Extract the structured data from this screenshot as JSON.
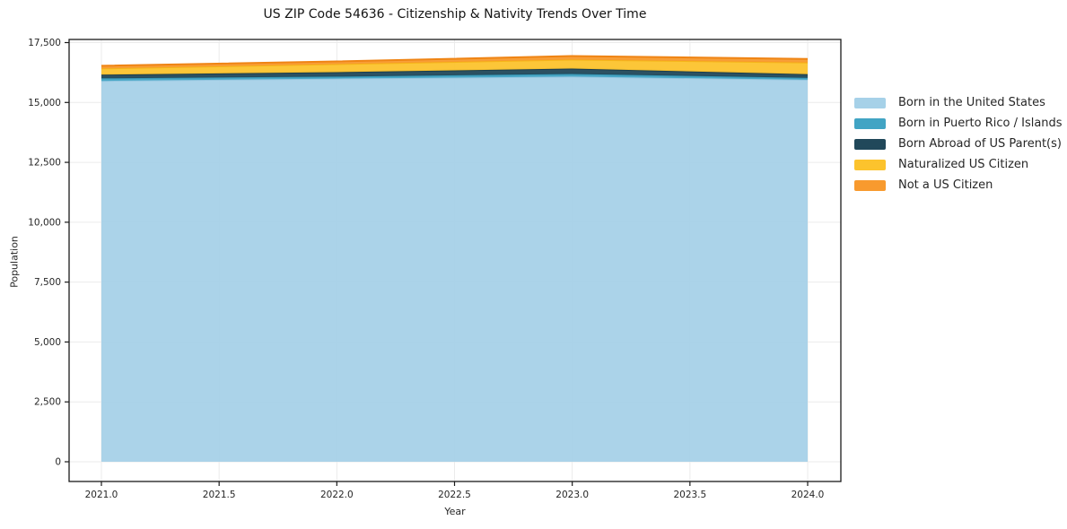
{
  "title": "US ZIP Code 54636 - Citizenship & Nativity Trends Over Time",
  "chart_data": {
    "type": "area",
    "stacked": true,
    "title": "US ZIP Code 54636 - Citizenship & Nativity Trends Over Time",
    "xlabel": "Year",
    "ylabel": "Population",
    "x": [
      2021,
      2022,
      2023,
      2024
    ],
    "series": [
      {
        "name": "Born in the United States",
        "color": "#a6d1e8",
        "edge": "#94c6e0",
        "values": [
          15900,
          16000,
          16080,
          15950
        ]
      },
      {
        "name": "Born in Puerto Rico / Islands",
        "color": "#41a4c4",
        "edge": "#3795b4",
        "values": [
          110,
          80,
          110,
          80
        ]
      },
      {
        "name": "Born Abroad of US Parent(s)",
        "color": "#21485a",
        "edge": "#1a3d4e",
        "values": [
          150,
          185,
          225,
          150
        ]
      },
      {
        "name": "Naturalized US Citizen",
        "color": "#fcc32d",
        "edge": "#f5b519",
        "values": [
          260,
          335,
          375,
          490
        ]
      },
      {
        "name": "Not a US Citizen",
        "color": "#f89a2e",
        "edge": "#ef8414",
        "values": [
          110,
          115,
          150,
          150
        ]
      }
    ],
    "totals": [
      16530,
      16715,
      16940,
      16820
    ],
    "xticks": {
      "values": [
        2021.0,
        2021.5,
        2022.0,
        2022.5,
        2023.0,
        2023.5,
        2024.0
      ],
      "labels": [
        "2021.0",
        "2021.5",
        "2022.0",
        "2022.5",
        "2023.0",
        "2023.5",
        "2024.0"
      ]
    },
    "yticks": {
      "values": [
        0,
        2500,
        5000,
        7500,
        10000,
        12500,
        15000,
        17500
      ],
      "labels": [
        "0",
        "2,500",
        "5,000",
        "7,500",
        "10,000",
        "12,500",
        "15,000",
        "17,500"
      ]
    },
    "xlim": [
      2020.86,
      2024.14
    ],
    "ylim": [
      -820,
      17690
    ],
    "grid": true,
    "legend_position": "right-outside",
    "colors": {
      "background": "#ffffff",
      "gridline": "#ebebeb",
      "spine": "#1a1a1a",
      "tick_text": "#262626"
    }
  }
}
